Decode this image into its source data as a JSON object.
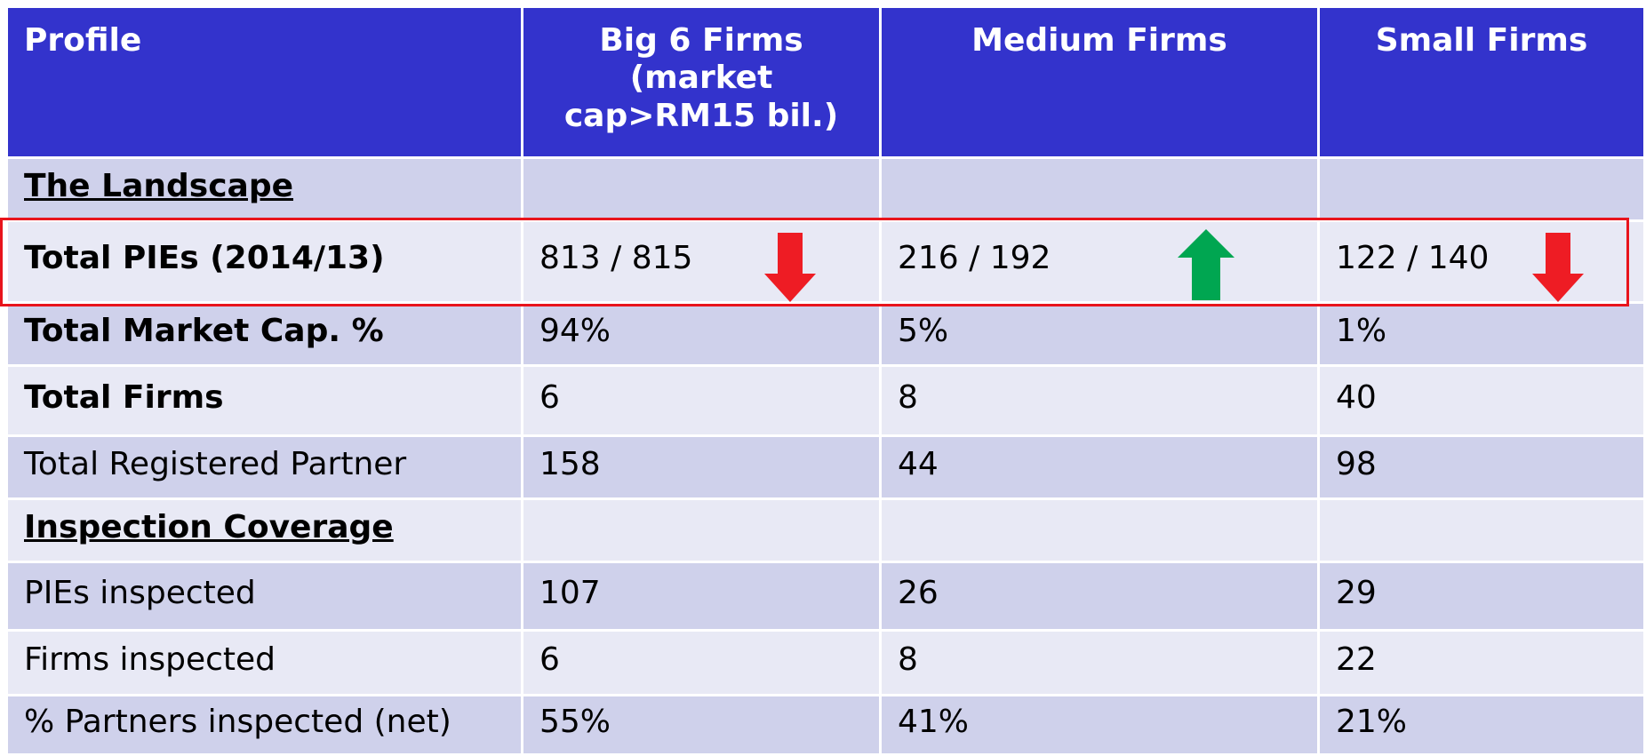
{
  "table": {
    "header": [
      "Profile",
      "Big 6 Firms (market cap>RM15 bil.)",
      "Medium Firms",
      "Small Firms"
    ],
    "rows": [
      [
        "The Landscape"
      ],
      [
        "Total PIEs (2014/13)",
        "813 / 815",
        "216 / 192",
        "122 / 140"
      ],
      [
        "Total Market Cap. %",
        "94%",
        "5%",
        "1%"
      ],
      [
        "Total Firms",
        "6",
        "8",
        "40"
      ],
      [
        "Total Registered Partner",
        "158",
        "44",
        "98"
      ],
      [
        "Inspection Coverage"
      ],
      [
        "PIEs inspected",
        "107",
        "26",
        "29"
      ],
      [
        "Firms inspected",
        "6",
        "8",
        "22"
      ],
      [
        "% Partners inspected (net)",
        "55%",
        "41%",
        "21%"
      ]
    ]
  }
}
